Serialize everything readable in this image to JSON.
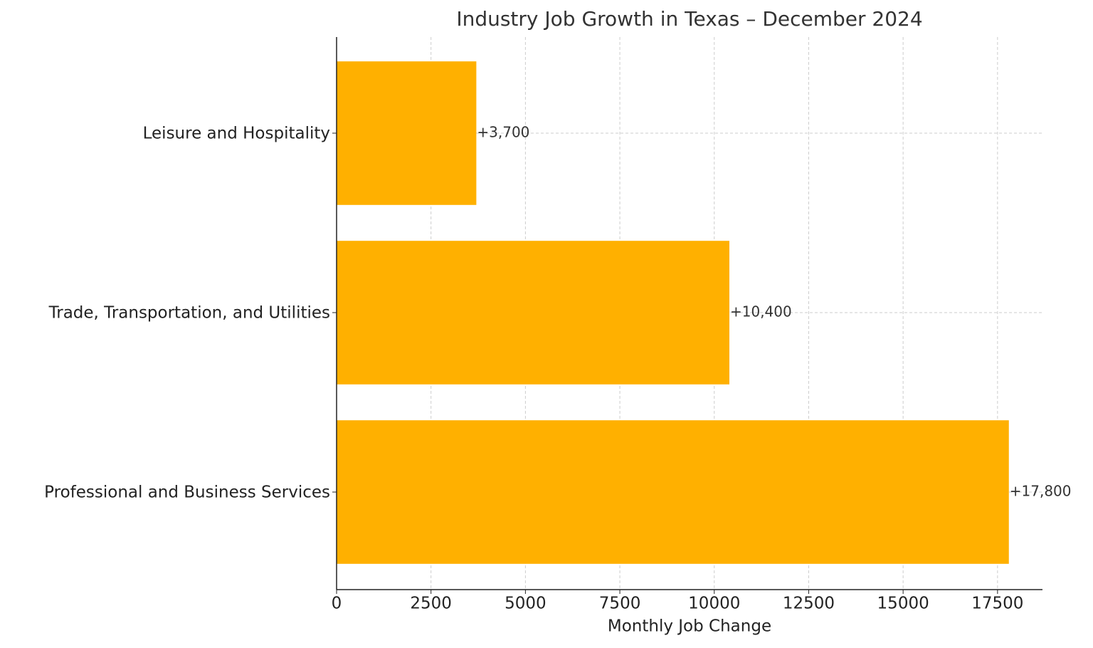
{
  "chart_data": {
    "type": "barh",
    "title": "Industry Job Growth in Texas – December 2024",
    "x_label": "Monthly Job Change",
    "categories": [
      "Professional and Business Services",
      "Trade, Transportation, and Utilities",
      "Leisure and Hospitality"
    ],
    "values": [
      17800,
      10400,
      3700
    ],
    "value_labels": [
      "+17,800",
      "+10,400",
      "+3,700"
    ],
    "color": "#ffb000",
    "xlim": [
      0,
      18690
    ],
    "xticks": [
      0,
      2500,
      5000,
      7500,
      10000,
      12500,
      15000,
      17500
    ],
    "grid": true
  }
}
